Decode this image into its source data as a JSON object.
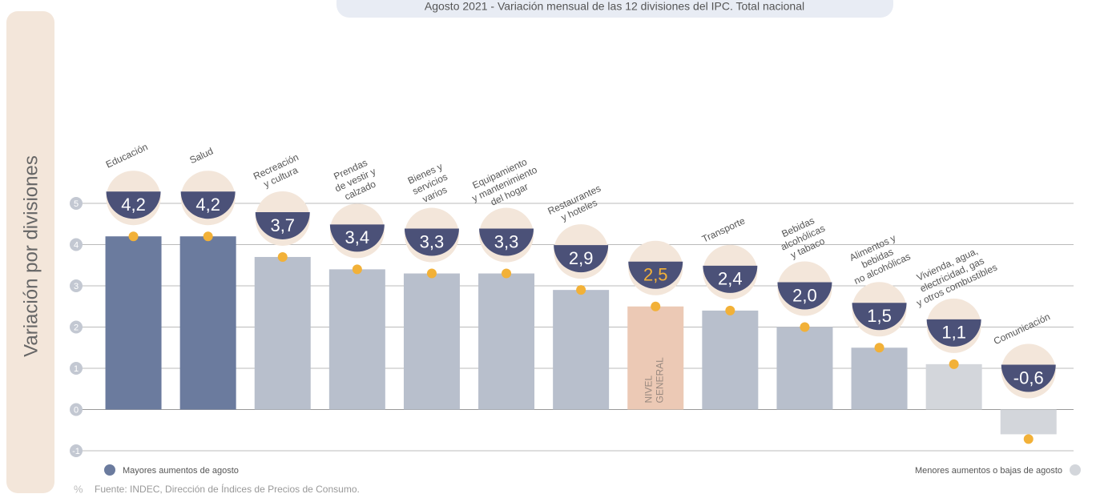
{
  "chart_data": {
    "type": "bar",
    "title": "Agosto 2021 - Variación mensual de las 12 divisiones del IPC. Total nacional",
    "y_axis_label": "Variación por divisiones",
    "unit": "%",
    "source": "Fuente: INDEC, Dirección de Índices de Precios de Consumo.",
    "categories": [
      [
        "Educación"
      ],
      [
        "Salud"
      ],
      [
        "Recreación",
        "y cultura"
      ],
      [
        "Prendas",
        "de vestir y",
        "calzado"
      ],
      [
        "Bienes y",
        "servicios",
        "varios"
      ],
      [
        "Equipamiento",
        "y mantenimiento",
        "del hogar"
      ],
      [
        "Restaurantes",
        "y hoteles"
      ],
      [
        "NIVEL",
        "GENERAL"
      ],
      [
        "Transporte"
      ],
      [
        "Bebidas",
        "alcohólicas",
        "y tabaco"
      ],
      [
        "Alimentos y",
        "bebidas",
        "no alcohólicas"
      ],
      [
        "Vivienda, agua,",
        "electricidad, gas",
        "y otros combustibles"
      ],
      [
        "Comunicación"
      ]
    ],
    "values": [
      4.2,
      4.2,
      3.7,
      3.4,
      3.3,
      3.3,
      2.9,
      2.5,
      2.4,
      2.0,
      1.5,
      1.1,
      -0.6
    ],
    "value_labels": [
      "4,2",
      "4,2",
      "3,7",
      "3,4",
      "3,3",
      "3,3",
      "2,9",
      "2,5",
      "2,4",
      "2,0",
      "1,5",
      "1,1",
      "-0,6"
    ],
    "colors": [
      "#6b7b9e",
      "#6b7b9e",
      "#b8bfcc",
      "#b8bfcc",
      "#b8bfcc",
      "#b8bfcc",
      "#b8bfcc",
      "#ecc9b5",
      "#b8bfcc",
      "#b8bfcc",
      "#b8bfcc",
      "#d3d6db",
      "#d3d6db"
    ],
    "ylim": [
      -1,
      5
    ],
    "yticks": [
      -1,
      0,
      1,
      2,
      3,
      4,
      5
    ],
    "grid": true,
    "legend": [
      {
        "name": "Mayores aumentos de agosto",
        "color": "#6b7b9e"
      },
      {
        "name": "Menores aumentos o bajas de agosto",
        "color": "#d3d6db"
      }
    ]
  }
}
